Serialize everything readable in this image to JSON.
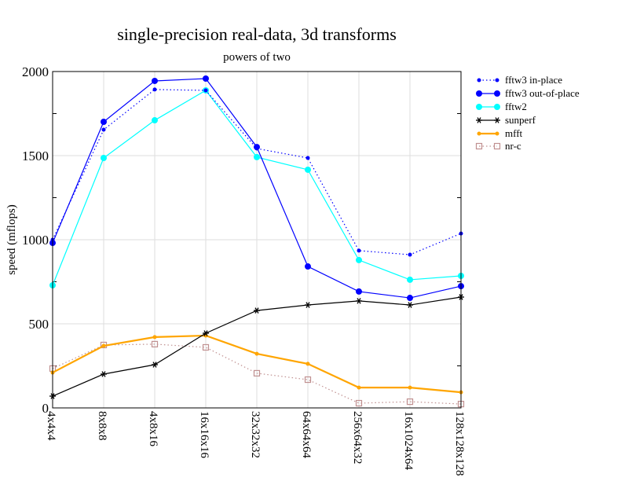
{
  "chart_data": {
    "type": "line",
    "title": "single-precision real-data, 3d transforms",
    "subtitle": "powers of two",
    "xlabel": "",
    "ylabel": "speed (mflops)",
    "ylim": [
      0,
      2000
    ],
    "yticks": [
      0,
      500,
      1000,
      1500,
      2000
    ],
    "grid": true,
    "legend_position": "right",
    "categories": [
      "4x4x4",
      "8x8x8",
      "4x8x16",
      "16x16x16",
      "32x32x32",
      "64x64x64",
      "256x64x32",
      "16x1024x64",
      "128x128x128"
    ],
    "series": [
      {
        "name": "fftw3 in-place",
        "color": "#0000ff",
        "dash": "dotted",
        "marker": "dot-small",
        "values": [
          1000,
          1654,
          1893,
          1888,
          1542,
          1486,
          935,
          911,
          1037
        ]
      },
      {
        "name": "fftw3 out-of-place",
        "color": "#0000ff",
        "dash": "solid",
        "marker": "dot-large",
        "values": [
          981,
          1701,
          1944,
          1958,
          1551,
          841,
          692,
          654,
          724
        ]
      },
      {
        "name": "fftw2",
        "color": "#00ffff",
        "dash": "solid",
        "marker": "dot-large",
        "values": [
          729,
          1486,
          1710,
          1888,
          1491,
          1416,
          879,
          762,
          785
        ]
      },
      {
        "name": "sunperf",
        "color": "#000000",
        "dash": "solid",
        "marker": "star",
        "values": [
          70,
          201,
          257,
          444,
          579,
          612,
          636,
          612,
          659
        ]
      },
      {
        "name": "mfft",
        "color": "#ffa500",
        "dash": "solid-thick",
        "marker": "dot-small",
        "values": [
          210,
          369,
          421,
          430,
          322,
          262,
          121,
          121,
          93
        ]
      },
      {
        "name": "nr-c",
        "color": "#c09090",
        "dash": "dotted",
        "marker": "square",
        "values": [
          234,
          374,
          379,
          360,
          206,
          168,
          28,
          37,
          23
        ]
      }
    ]
  }
}
